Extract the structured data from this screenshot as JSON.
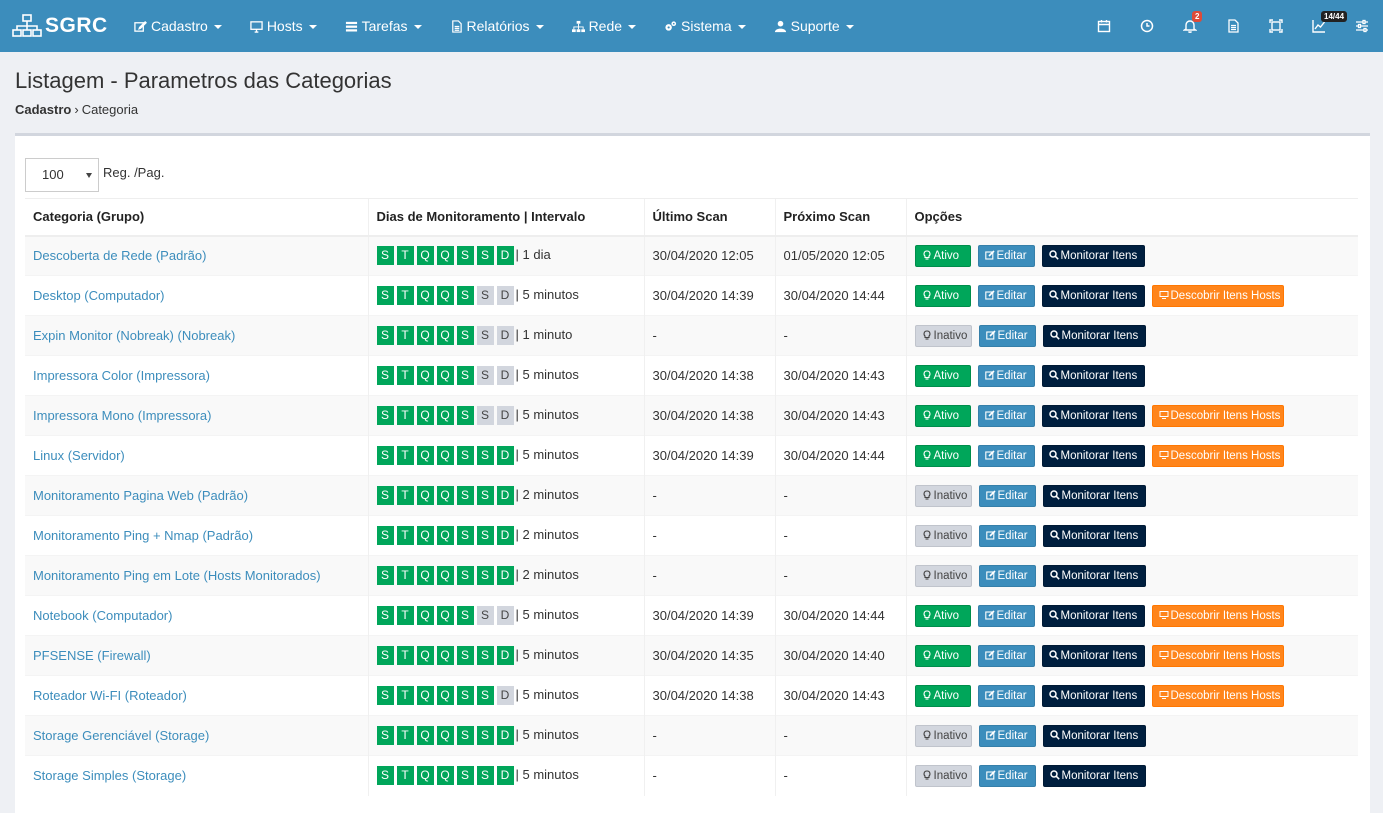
{
  "navbar": {
    "brand": "SGRC",
    "menu": [
      {
        "label": "Cadastro",
        "icon": "edit-icon"
      },
      {
        "label": "Hosts",
        "icon": "monitor-icon"
      },
      {
        "label": "Tarefas",
        "icon": "tasks-icon"
      },
      {
        "label": "Relatórios",
        "icon": "document-icon"
      },
      {
        "label": "Rede",
        "icon": "sitemap-icon"
      },
      {
        "label": "Sistema",
        "icon": "cogs-icon"
      },
      {
        "label": "Suporte",
        "icon": "user-icon"
      }
    ],
    "right_icons": [
      {
        "icon": "calendar-icon"
      },
      {
        "icon": "clock-icon"
      },
      {
        "icon": "bell-icon",
        "badge": "2"
      },
      {
        "icon": "file-icon"
      },
      {
        "icon": "screen-capture-icon"
      },
      {
        "icon": "chart-line-icon",
        "badge": "14/44"
      },
      {
        "icon": "sliders-icon"
      }
    ]
  },
  "header": {
    "title": "Listagem - Parametros das Categorias",
    "breadcrumb": {
      "parent": "Cadastro",
      "current": "Categoria"
    }
  },
  "toolbar": {
    "page_size": "100",
    "page_size_label": "Reg. /Pag."
  },
  "table": {
    "headers": [
      "Categoria (Grupo)",
      "Dias de Monitoramento | Intervalo",
      "Último Scan",
      "Próximo Scan",
      "Opções"
    ],
    "day_letters": [
      "S",
      "T",
      "Q",
      "Q",
      "S",
      "S",
      "D"
    ],
    "buttons": {
      "ativo": "Ativo",
      "inativo": "Inativo",
      "editar": "Editar",
      "monitorar": "Monitorar Itens",
      "descobrir": "Descobrir Itens Hosts"
    },
    "rows": [
      {
        "categoria": "Descoberta de Rede (Padrão)",
        "days": [
          1,
          1,
          1,
          1,
          1,
          1,
          1
        ],
        "interval": "1 dia",
        "ultimo": "30/04/2020 12:05",
        "proximo": "01/05/2020 12:05",
        "status": "ativo",
        "descobrir": false
      },
      {
        "categoria": "Desktop (Computador)",
        "days": [
          1,
          1,
          1,
          1,
          1,
          0,
          0
        ],
        "interval": "5 minutos",
        "ultimo": "30/04/2020 14:39",
        "proximo": "30/04/2020 14:44",
        "status": "ativo",
        "descobrir": true
      },
      {
        "categoria": "Expin Monitor (Nobreak) (Nobreak)",
        "days": [
          1,
          1,
          1,
          1,
          1,
          0,
          0
        ],
        "interval": "1 minuto",
        "ultimo": "-",
        "proximo": "-",
        "status": "inativo",
        "descobrir": false
      },
      {
        "categoria": "Impressora Color (Impressora)",
        "days": [
          1,
          1,
          1,
          1,
          1,
          0,
          0
        ],
        "interval": "5 minutos",
        "ultimo": "30/04/2020 14:38",
        "proximo": "30/04/2020 14:43",
        "status": "ativo",
        "descobrir": false
      },
      {
        "categoria": "Impressora Mono (Impressora)",
        "days": [
          1,
          1,
          1,
          1,
          1,
          0,
          0
        ],
        "interval": "5 minutos",
        "ultimo": "30/04/2020 14:38",
        "proximo": "30/04/2020 14:43",
        "status": "ativo",
        "descobrir": true
      },
      {
        "categoria": "Linux (Servidor)",
        "days": [
          1,
          1,
          1,
          1,
          1,
          1,
          1
        ],
        "interval": "5 minutos",
        "ultimo": "30/04/2020 14:39",
        "proximo": "30/04/2020 14:44",
        "status": "ativo",
        "descobrir": true
      },
      {
        "categoria": "Monitoramento Pagina Web (Padrão)",
        "days": [
          1,
          1,
          1,
          1,
          1,
          1,
          1
        ],
        "interval": "2 minutos",
        "ultimo": "-",
        "proximo": "-",
        "status": "inativo",
        "descobrir": false
      },
      {
        "categoria": "Monitoramento Ping + Nmap (Padrão)",
        "days": [
          1,
          1,
          1,
          1,
          1,
          1,
          1
        ],
        "interval": "2 minutos",
        "ultimo": "-",
        "proximo": "-",
        "status": "inativo",
        "descobrir": false
      },
      {
        "categoria": "Monitoramento Ping em Lote (Hosts Monitorados)",
        "days": [
          1,
          1,
          1,
          1,
          1,
          1,
          1
        ],
        "interval": "2 minutos",
        "ultimo": "-",
        "proximo": "-",
        "status": "inativo",
        "descobrir": false
      },
      {
        "categoria": "Notebook (Computador)",
        "days": [
          1,
          1,
          1,
          1,
          1,
          0,
          0
        ],
        "interval": "5 minutos",
        "ultimo": "30/04/2020 14:39",
        "proximo": "30/04/2020 14:44",
        "status": "ativo",
        "descobrir": true
      },
      {
        "categoria": "PFSENSE (Firewall)",
        "days": [
          1,
          1,
          1,
          1,
          1,
          1,
          1
        ],
        "interval": "5 minutos",
        "ultimo": "30/04/2020 14:35",
        "proximo": "30/04/2020 14:40",
        "status": "ativo",
        "descobrir": true
      },
      {
        "categoria": "Roteador Wi-FI (Roteador)",
        "days": [
          1,
          1,
          1,
          1,
          1,
          1,
          0
        ],
        "interval": "5 minutos",
        "ultimo": "30/04/2020 14:38",
        "proximo": "30/04/2020 14:43",
        "status": "ativo",
        "descobrir": true
      },
      {
        "categoria": "Storage Gerenciável (Storage)",
        "days": [
          1,
          1,
          1,
          1,
          1,
          1,
          1
        ],
        "interval": "5 minutos",
        "ultimo": "-",
        "proximo": "-",
        "status": "inativo",
        "descobrir": false
      },
      {
        "categoria": "Storage Simples (Storage)",
        "days": [
          1,
          1,
          1,
          1,
          1,
          1,
          1
        ],
        "interval": "5 minutos",
        "ultimo": "-",
        "proximo": "-",
        "status": "inativo",
        "descobrir": false
      }
    ]
  },
  "colors": {
    "navbar": "#3c8dbc",
    "success": "#00a65a",
    "primary": "#3c8dbc",
    "navy": "#001f3f",
    "orange": "#ff851b",
    "gray": "#d2d6de"
  }
}
